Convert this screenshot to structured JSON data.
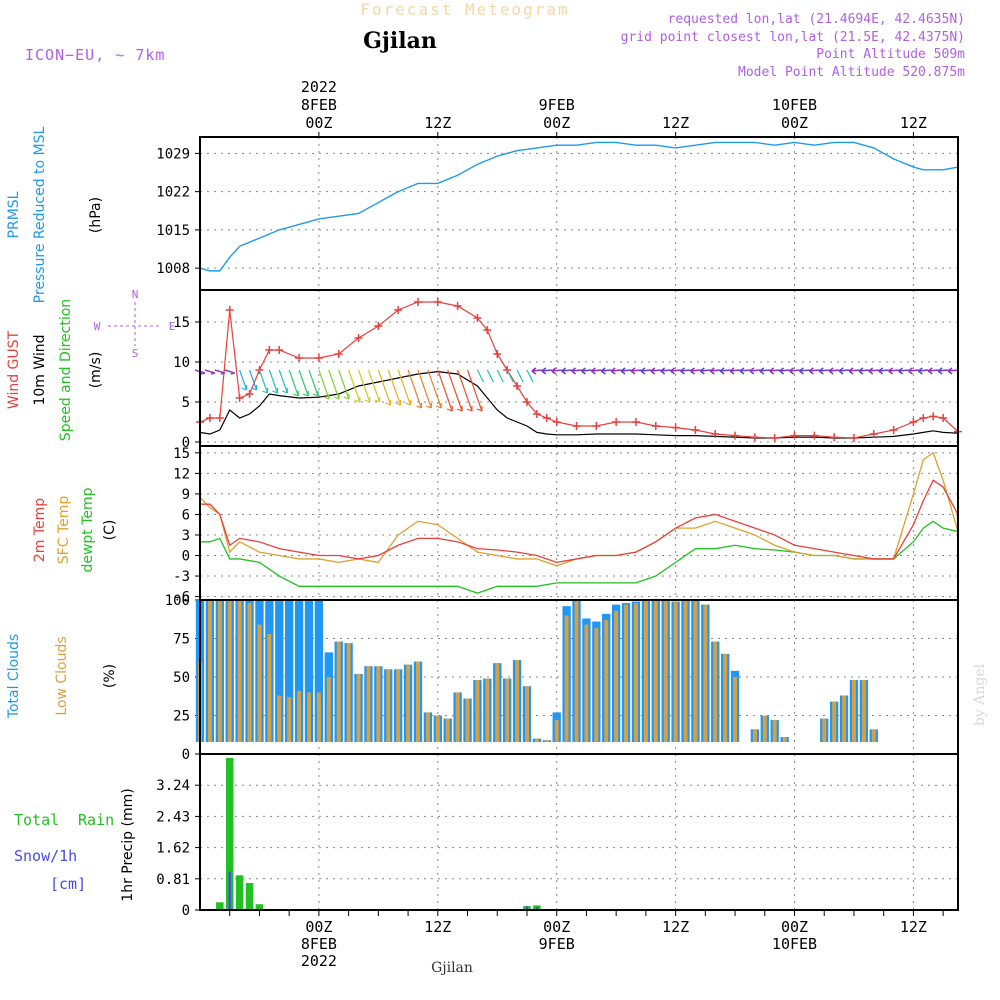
{
  "header": {
    "top_title": "Forecast Meteogram",
    "location": "Gjilan",
    "model": "ICON−EU, ~ 7km",
    "requested": "requested lon,lat (21.4694E, 42.4635N)",
    "grid_point": "grid point closest lon,lat (21.5E, 42.4375N)",
    "point_alt": "Point Altitude 509m",
    "model_alt": "Model Point Altitude 520.875m",
    "footer_location": "Gjilan",
    "credit": "by Angel"
  },
  "time_axis": {
    "year": "2022",
    "major": [
      {
        "hour": "00Z",
        "date": "8FEB",
        "t": 24
      },
      {
        "hour": "12Z",
        "date": "",
        "t": 36
      },
      {
        "hour": "00Z",
        "date": "9FEB",
        "t": 48
      },
      {
        "hour": "12Z",
        "date": "",
        "t": 60
      },
      {
        "hour": "00Z",
        "date": "10FEB",
        "t": 72
      },
      {
        "hour": "12Z",
        "date": "",
        "t": 84
      }
    ],
    "t_range": [
      12,
      88.5
    ]
  },
  "labels": {
    "p1_a": "PRMSL",
    "p1_b": "Pressure Reduced to MSL",
    "p1_u": "(hPa)",
    "p2_a": "Wind GUST",
    "p2_b": "10m Wind",
    "p2_c": "Speed and Direction",
    "p2_u": "(m/s)",
    "compass_n": "N",
    "compass_s": "S",
    "compass_w": "W",
    "compass_e": "E",
    "p3_a": "2m Temp",
    "p3_b": "SFC Temp",
    "p3_c": "dewpt Temp",
    "p3_u": "(C)",
    "p4_a": "Total Clouds",
    "p4_b": "Low Clouds",
    "p4_u": "(%)",
    "p5_a": "Total",
    "p5_b": "Rain",
    "p5_c": "Snow/1h",
    "p5_d": "[cm]",
    "p5_u": "1hr Precip (mm)"
  },
  "colors": {
    "pressure": "#1e9be8",
    "gust": "#e8403c",
    "wind10": "#000000",
    "t2m": "#e8403c",
    "tsfc": "#e0a030",
    "dewpt": "#22c022",
    "cloud_total": "#2196f3",
    "cloud_low": "#d8a040",
    "rain": "#22c022",
    "snow": "#4a4ae8",
    "purple": "#b060e0",
    "grid": "#888888"
  },
  "chart_data": [
    {
      "type": "line",
      "name": "PRMSL",
      "ylim": [
        1004,
        1032
      ],
      "yticks": [
        "1008",
        "1015",
        "1022",
        "1029"
      ],
      "x": [
        12,
        13,
        14,
        15,
        16,
        18,
        20,
        22,
        24,
        26,
        28,
        30,
        32,
        34,
        36,
        38,
        40,
        42,
        44,
        46,
        48,
        50,
        52,
        54,
        56,
        58,
        60,
        62,
        64,
        66,
        68,
        70,
        72,
        74,
        76,
        78,
        80,
        82,
        84,
        85,
        86,
        87,
        88.5
      ],
      "values": [
        1008,
        1007.5,
        1007.5,
        1010,
        1012,
        1013.5,
        1015,
        1016,
        1017,
        1017.5,
        1018,
        1020,
        1022,
        1023.5,
        1023.5,
        1025,
        1027,
        1028.5,
        1029.5,
        1030,
        1030.5,
        1030.5,
        1031,
        1031,
        1030.5,
        1030.5,
        1030,
        1030.5,
        1031,
        1031,
        1031,
        1030.5,
        1031,
        1030.5,
        1031,
        1031,
        1030,
        1028,
        1026.5,
        1026,
        1026,
        1026,
        1026.5
      ]
    },
    {
      "type": "line",
      "name": "Wind",
      "ylim": [
        -0.5,
        19
      ],
      "yticks": [
        "0",
        "5",
        "10",
        "15"
      ],
      "x": [
        12,
        13,
        14,
        15,
        16,
        17,
        18,
        19,
        20,
        22,
        24,
        26,
        28,
        30,
        32,
        34,
        36,
        38,
        40,
        41,
        42,
        43,
        44,
        45,
        46,
        47,
        48,
        50,
        52,
        54,
        56,
        58,
        60,
        62,
        64,
        66,
        68,
        70,
        72,
        74,
        76,
        78,
        80,
        82,
        84,
        85,
        86,
        87,
        88.5
      ],
      "gust": [
        2.5,
        3,
        3,
        16.5,
        5.5,
        6,
        9,
        11.5,
        11.5,
        10.5,
        10.5,
        11,
        13,
        14.5,
        16.5,
        17.5,
        17.5,
        17,
        15.5,
        14,
        11,
        9,
        7,
        5,
        3.5,
        3,
        2.5,
        2,
        2,
        2.5,
        2.5,
        2,
        1.8,
        1.5,
        1,
        0.8,
        0.6,
        0.5,
        0.8,
        0.8,
        0.6,
        0.5,
        1,
        1.5,
        2.5,
        3,
        3.2,
        3,
        1.3
      ],
      "speed10": [
        1.2,
        1,
        1.5,
        4,
        3,
        3.5,
        4.5,
        6,
        5.8,
        5.5,
        5.6,
        6,
        7,
        7.5,
        8,
        8.5,
        8.8,
        8.5,
        7,
        5.5,
        4,
        3,
        2.5,
        2,
        1.2,
        1,
        0.9,
        0.9,
        1,
        1,
        1,
        0.9,
        0.8,
        0.8,
        0.7,
        0.6,
        0.5,
        0.5,
        0.6,
        0.6,
        0.5,
        0.5,
        0.6,
        0.7,
        1,
        1.2,
        1.4,
        1.2,
        1.1
      ],
      "direction_arrows_level": 9
    },
    {
      "type": "line",
      "name": "Temperature",
      "ylim": [
        -6.5,
        16
      ],
      "yticks": [
        "-6",
        "-3",
        "0",
        "3",
        "6",
        "9",
        "12",
        "15"
      ],
      "x": [
        12,
        13,
        14,
        15,
        16,
        18,
        20,
        22,
        24,
        26,
        28,
        30,
        32,
        34,
        36,
        38,
        40,
        42,
        44,
        46,
        48,
        50,
        52,
        54,
        56,
        58,
        60,
        62,
        64,
        66,
        68,
        70,
        72,
        74,
        76,
        78,
        80,
        82,
        84,
        85,
        86,
        87,
        88.5
      ],
      "t2m": [
        7.5,
        7.5,
        6,
        1.5,
        2.5,
        2,
        1,
        0.5,
        0,
        0,
        -0.5,
        0,
        1.5,
        2.5,
        2.5,
        2,
        1,
        0.8,
        0.5,
        0,
        -1,
        -0.5,
        0,
        0,
        0.5,
        2,
        4,
        5.5,
        6,
        5,
        4,
        3,
        1.5,
        1,
        0.5,
        0,
        -0.5,
        -0.5,
        4.5,
        8,
        11,
        10,
        6
      ],
      "tsfc": [
        8.5,
        7,
        6,
        0.5,
        2,
        0.5,
        0,
        -0.5,
        -0.5,
        -1,
        -0.5,
        -1,
        3,
        5,
        4.5,
        2.5,
        0.5,
        0,
        -0.5,
        -0.5,
        -1.5,
        -0.5,
        0,
        0,
        0.5,
        2,
        4,
        4,
        5,
        4,
        3,
        1.5,
        0.5,
        0,
        0,
        -0.5,
        -0.5,
        -0.5,
        9,
        14,
        15,
        11,
        3.5
      ],
      "dewpt": [
        2,
        2,
        2.5,
        -0.5,
        -0.5,
        -1,
        -3,
        -4.5,
        -4.5,
        -4.5,
        -4.5,
        -4.5,
        -4.5,
        -4.5,
        -4.5,
        -4.5,
        -5.5,
        -4.5,
        -4.5,
        -4.5,
        -4,
        -4,
        -4,
        -4,
        -4,
        -3,
        -1,
        1,
        1,
        1.5,
        1,
        0.8,
        0.5,
        0,
        0,
        -0.5,
        -0.5,
        -0.5,
        2,
        4,
        5,
        4,
        3.5
      ]
    },
    {
      "type": "bar",
      "name": "Clouds",
      "ylim": [
        0,
        100
      ],
      "yticks": [
        "0",
        "25",
        "50",
        "75",
        "100"
      ],
      "x_start": 12,
      "x_step": 1,
      "total": [
        100,
        100,
        100,
        100,
        100,
        100,
        100,
        100,
        100,
        100,
        100,
        100,
        100,
        66,
        73,
        72,
        52,
        57,
        57,
        55,
        55,
        58,
        60,
        27,
        25,
        23,
        40,
        36,
        48,
        49,
        59,
        49,
        61,
        44,
        10,
        9,
        27,
        96,
        100,
        88,
        86,
        91,
        97,
        98,
        99,
        100,
        100,
        100,
        99,
        100,
        100,
        97,
        73,
        65,
        54,
        5,
        16,
        25,
        22,
        11,
        0,
        0,
        0,
        23,
        34,
        38,
        48,
        48,
        16,
        0,
        0,
        0,
        0,
        0,
        0,
        0,
        0
      ],
      "low": [
        60,
        100,
        100,
        100,
        100,
        98,
        84,
        78,
        38,
        37,
        41,
        40,
        40,
        50,
        73,
        72,
        52,
        57,
        57,
        55,
        55,
        58,
        60,
        27,
        25,
        23,
        40,
        36,
        48,
        49,
        59,
        49,
        61,
        44,
        10,
        9,
        22,
        90,
        100,
        84,
        82,
        87,
        93,
        97,
        98,
        100,
        100,
        100,
        99,
        100,
        100,
        97,
        73,
        65,
        50,
        5,
        16,
        25,
        22,
        11,
        0,
        0,
        0,
        23,
        34,
        38,
        48,
        48,
        16,
        0,
        0,
        0,
        0,
        0,
        0,
        0,
        0
      ]
    },
    {
      "type": "bar",
      "name": "Precipitation",
      "ylim": [
        0,
        4.05
      ],
      "yticks": [
        "0",
        "0.81",
        "1.62",
        "2.43",
        "3.24"
      ],
      "rain": [
        {
          "x": 14,
          "v": 0.2
        },
        {
          "x": 15,
          "v": 3.95
        },
        {
          "x": 16,
          "v": 0.9
        },
        {
          "x": 17,
          "v": 0.7
        },
        {
          "x": 18,
          "v": 0.15
        },
        {
          "x": 45,
          "v": 0.1
        },
        {
          "x": 46,
          "v": 0.12
        }
      ],
      "snow": [
        {
          "x": 15,
          "v": 1
        },
        {
          "x": 45,
          "v": 0.1
        },
        {
          "x": 46,
          "v": 0.08
        }
      ]
    }
  ]
}
